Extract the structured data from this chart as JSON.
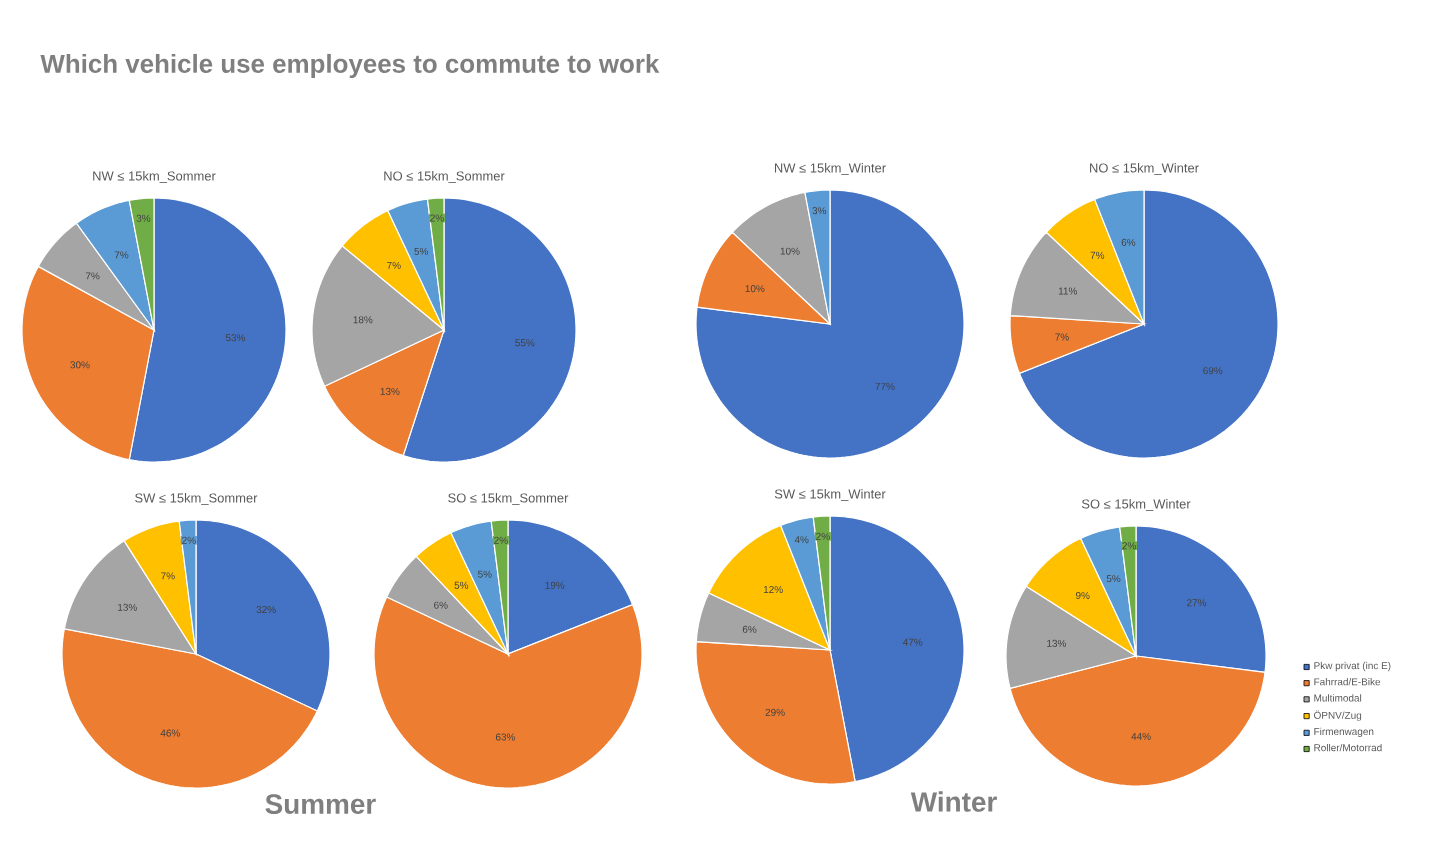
{
  "chart_data": [
    {
      "type": "pie",
      "title": "NW ≤ 15km_Sommer",
      "annotations": [
        "Which vehicle use employees to commute to work"
      ],
      "values": [
        53,
        30,
        7,
        null,
        7,
        3
      ],
      "value_labels": [
        "53%",
        "30%",
        "7%",
        null,
        "7%",
        "3%"
      ],
      "colors": [
        "#4472c4",
        "#ed7d31",
        "#a5a5a5",
        "#ffc000",
        "#5b9bd5",
        "#70ad47"
      ]
    },
    {
      "type": "pie",
      "title": "NO ≤ 15km_Sommer",
      "values": [
        55,
        13,
        18,
        7,
        5,
        2
      ],
      "value_labels": [
        "55%",
        "13%",
        "18%",
        "7%",
        "5%",
        "2%"
      ],
      "colors": [
        "#4472c4",
        "#ed7d31",
        "#a5a5a5",
        "#ffc000",
        "#5b9bd5",
        "#70ad47"
      ]
    },
    {
      "type": "pie",
      "title": "NW ≤ 15km_Winter",
      "values": [
        77,
        10,
        10,
        null,
        3,
        null
      ],
      "value_labels": [
        "77%",
        "10%",
        "10%",
        null,
        "3%",
        null
      ],
      "colors": [
        "#4472c4",
        "#ed7d31",
        "#a5a5a5",
        "#ffc000",
        "#5b9bd5",
        "#70ad47"
      ]
    },
    {
      "type": "pie",
      "title": "NO ≤ 15km_Winter",
      "values": [
        69,
        7,
        11,
        7,
        6,
        null
      ],
      "value_labels": [
        "69%",
        "7%",
        "11%",
        "7%",
        "6%",
        null
      ],
      "colors": [
        "#4472c4",
        "#ed7d31",
        "#a5a5a5",
        "#ffc000",
        "#5b9bd5",
        "#70ad47"
      ]
    },
    {
      "type": "pie",
      "title": "SW ≤ 15km_Sommer",
      "values": [
        32,
        46,
        13,
        7,
        2,
        null
      ],
      "value_labels": [
        "32%",
        "46%",
        "13%",
        "7%",
        "2%",
        null
      ],
      "colors": [
        "#4472c4",
        "#ed7d31",
        "#a5a5a5",
        "#ffc000",
        "#5b9bd5",
        "#70ad47"
      ]
    },
    {
      "type": "pie",
      "title": "SO ≤ 15km_Sommer",
      "annotations": [
        "Summer"
      ],
      "values": [
        19,
        63,
        6,
        5,
        5,
        2
      ],
      "value_labels": [
        "19%",
        "63%",
        "6%",
        "5%",
        "5%",
        "2%"
      ],
      "colors": [
        "#4472c4",
        "#ed7d31",
        "#a5a5a5",
        "#ffc000",
        "#5b9bd5",
        "#70ad47"
      ]
    },
    {
      "type": "pie",
      "title": "SW ≤ 15km_Winter",
      "values": [
        47,
        29,
        6,
        12,
        4,
        2
      ],
      "value_labels": [
        "47%",
        "29%",
        "6%",
        "12%",
        "4%",
        "2%"
      ],
      "colors": [
        "#4472c4",
        "#ed7d31",
        "#a5a5a5",
        "#ffc000",
        "#5b9bd5",
        "#70ad47"
      ]
    },
    {
      "type": "pie",
      "title": "SO ≤ 15km_Winter",
      "annotations": [
        "Winter"
      ],
      "legend": "right",
      "categories": [
        "Pkw privat (inc E)",
        "Fahrrad/E-Bike",
        "Multimodal",
        "ÖPNV/Zug",
        "Firmenwagen",
        "Roller/Motorrad"
      ],
      "values": [
        27,
        44,
        13,
        9,
        5,
        2
      ],
      "value_labels": [
        "27%",
        "44%",
        "13%",
        "9%",
        "5%",
        "2%"
      ],
      "colors": [
        "#4472c4",
        "#ed7d31",
        "#a5a5a5",
        "#ffc000",
        "#5b9bd5",
        "#70ad47"
      ]
    }
  ]
}
